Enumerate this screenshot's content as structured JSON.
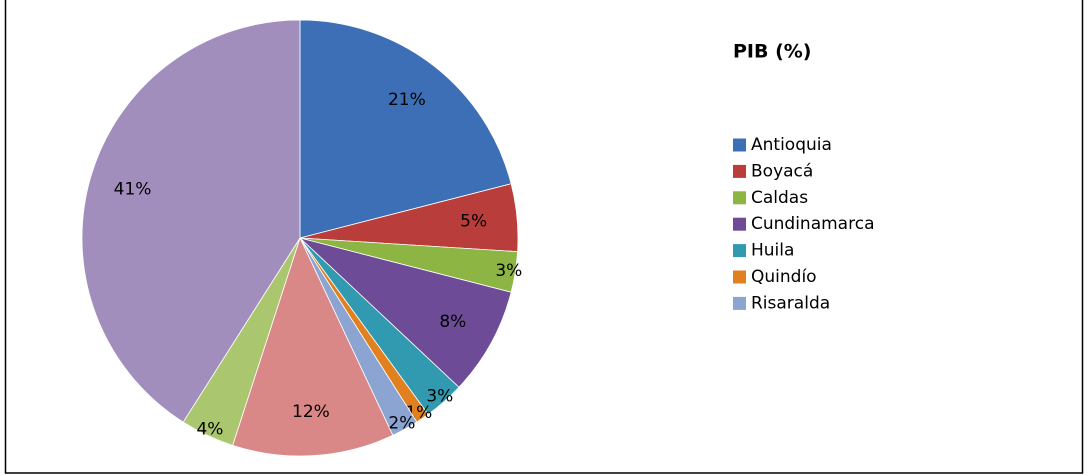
{
  "chart_data": {
    "type": "pie",
    "legend_title": "PIB  (%)",
    "categories": [
      "Antioquia",
      "Boyacá",
      "Caldas",
      "Cundinamarca",
      "Huila",
      "Quindío",
      "Risaralda",
      null,
      null,
      null
    ],
    "values": [
      21,
      5,
      3,
      8,
      3,
      1,
      2,
      12,
      4,
      41
    ],
    "value_labels": [
      "21%",
      "5%",
      "3%",
      "8%",
      "3%",
      "1%",
      "2%",
      "12%",
      "4%",
      "41%"
    ],
    "colors": [
      "#3c6fb6",
      "#b93d3b",
      "#8db543",
      "#6d4b97",
      "#3199b0",
      "#e0801f",
      "#8ba4d2",
      "#d98887",
      "#aac770",
      "#a28ebd"
    ],
    "legend": "right"
  }
}
